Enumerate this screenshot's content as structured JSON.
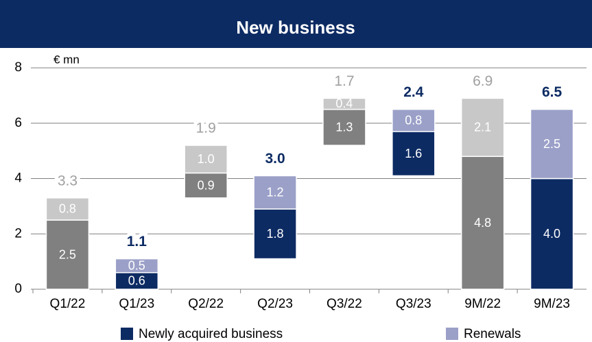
{
  "chart_data": {
    "type": "waterfall",
    "title": "New business",
    "unit": "€ mn",
    "categories": [
      "Q1/22",
      "Q1/23",
      "Q2/22",
      "Q2/23",
      "Q3/22",
      "Q3/23",
      "9M/22",
      "9M/23"
    ],
    "series": [
      {
        "name": "Newly acquired business",
        "color": "#0d2b63",
        "colors": [
          "#808080",
          "#0d2b63",
          "#808080",
          "#0d2b63",
          "#808080",
          "#0d2b63",
          "#808080",
          "#0d2b63"
        ],
        "values": [
          2.5,
          0.6,
          0.9,
          1.8,
          1.3,
          1.6,
          4.8,
          4
        ],
        "value_labels": [
          "2.5",
          "0.6",
          "0.9",
          "1.8",
          "1.3",
          "1.6",
          "4.8",
          "4.0"
        ]
      },
      {
        "name": "Renewals",
        "color": "#9ba0c8",
        "colors": [
          "#c8c8c8",
          "#9ba0c8",
          "#c8c8c8",
          "#9ba0c8",
          "#c8c8c8",
          "#9ba0c8",
          "#c8c8c8",
          "#9ba0c8"
        ],
        "values": [
          0.8,
          0.5,
          1,
          1.2,
          0.4,
          0.8,
          2.1,
          2.5
        ],
        "value_labels": [
          "0.8",
          "0.5",
          "1.0",
          "1.2",
          "0.4",
          "0.8",
          "2.1",
          "2.5"
        ]
      }
    ],
    "totals": [
      3.3,
      1.1,
      1.9,
      3,
      1.7,
      2.4,
      6.9,
      6.5
    ],
    "total_labels": [
      "3.3",
      "1.1",
      "1.9",
      "3.0",
      "1.7",
      "2.4",
      "6.9",
      "6.5"
    ],
    "total_colors": [
      "#a0a0a0",
      "#0d2b63",
      "#a0a0a0",
      "#0d2b63",
      "#a0a0a0",
      "#0d2b63",
      "#a0a0a0",
      "#0d2b63"
    ],
    "ylim": [
      0,
      8
    ],
    "yticks": [
      0,
      2,
      4,
      6,
      8
    ],
    "grid": true
  }
}
